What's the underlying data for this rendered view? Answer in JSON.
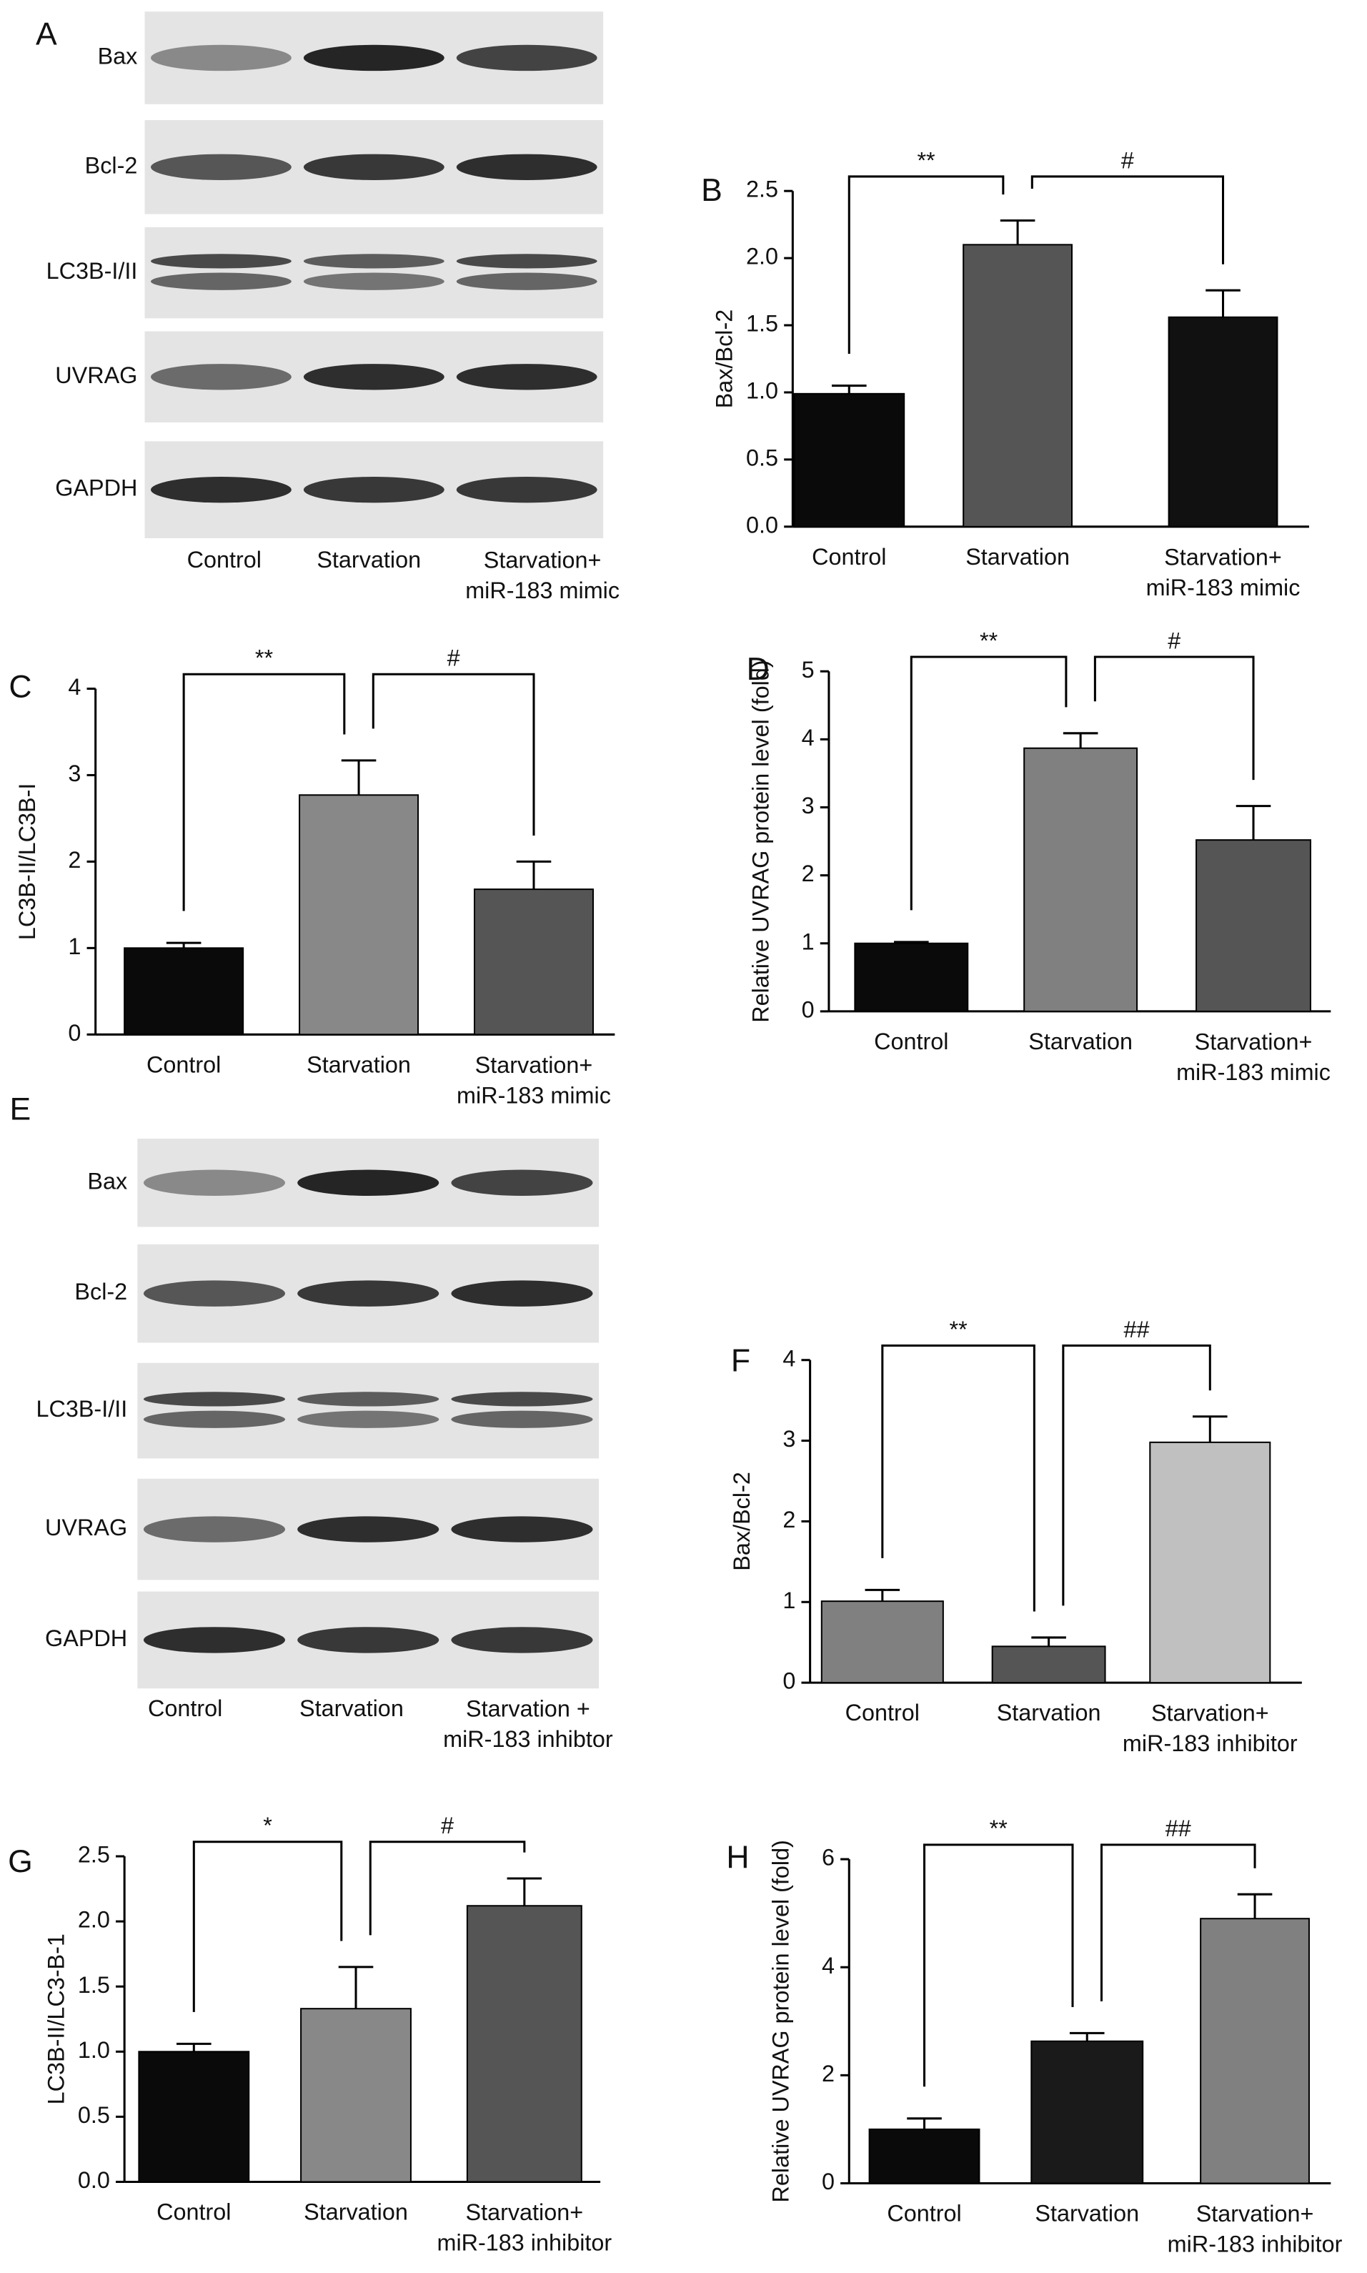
{
  "blots": [
    {
      "panel": "A",
      "rows": [
        "Bax",
        "Bcl-2",
        "LC3B-I/II",
        "UVRAG",
        "GAPDH"
      ],
      "lanes": [
        "Control",
        "Starvation",
        "Starvation+\nmiR-183 mimic"
      ]
    },
    {
      "panel": "E",
      "rows": [
        "Bax",
        "Bcl-2",
        "LC3B-I/II",
        "UVRAG",
        "GAPDH"
      ],
      "lanes": [
        "Control",
        "Starvation",
        "Starvation +\nmiR-183 inhibtor"
      ]
    }
  ],
  "chart_data": [
    {
      "type": "bar",
      "panel": "B",
      "y_label": "Bax/Bcl-2",
      "categories": [
        "Control",
        "Starvation",
        "Starvation+\nmiR-183 mimic"
      ],
      "values": [
        0.99,
        2.1,
        1.56
      ],
      "errors": [
        0.06,
        0.18,
        0.2
      ],
      "colors": [
        "#0a0a0a",
        "#555555",
        "#111111"
      ],
      "ylim": [
        0,
        2.5
      ],
      "yticks": [
        {
          "value": 0,
          "label": "0.0"
        },
        0.5,
        {
          "value": 1,
          "label": "1.0"
        },
        1.5,
        {
          "value": 2,
          "label": "2.0"
        },
        2.5
      ],
      "annotations": [
        "**",
        "#"
      ]
    },
    {
      "type": "bar",
      "panel": "C",
      "y_label": "LC3B-II/LC3B-I",
      "categories": [
        "Control",
        "Starvation",
        "Starvation+\nmiR-183 mimic"
      ],
      "values": [
        1.0,
        2.77,
        1.68
      ],
      "errors": [
        0.06,
        0.4,
        0.32
      ],
      "colors": [
        "#0a0a0a",
        "#888888",
        "#555555"
      ],
      "ylim": [
        0,
        4
      ],
      "yticks": [
        0,
        1,
        2,
        3,
        4
      ],
      "annotations": [
        "**",
        "#"
      ]
    },
    {
      "type": "bar",
      "panel": "D",
      "y_label": "Relative UVRAG protein level (fold)",
      "categories": [
        "Control",
        "Starvation",
        "Starvation+\nmiR-183 mimic"
      ],
      "values": [
        1.0,
        3.87,
        2.52
      ],
      "errors": [
        0.02,
        0.22,
        0.5
      ],
      "colors": [
        "#0a0a0a",
        "#808080",
        "#555555"
      ],
      "ylim": [
        0,
        5
      ],
      "yticks": [
        0,
        1,
        2,
        3,
        4,
        5
      ],
      "annotations": [
        "**",
        "#"
      ]
    },
    {
      "type": "bar",
      "panel": "F",
      "y_label": "Bax/Bcl-2",
      "categories": [
        "Control",
        "Starvation",
        "Starvation+\nmiR-183 inhibitor"
      ],
      "values": [
        1.01,
        0.45,
        2.98
      ],
      "errors": [
        0.14,
        0.11,
        0.32
      ],
      "colors": [
        "#808080",
        "#555555",
        "#c0c0c0"
      ],
      "ylim": [
        0,
        4
      ],
      "yticks": [
        0,
        1,
        2,
        3,
        4
      ],
      "annotations": [
        "**",
        "##"
      ]
    },
    {
      "type": "bar",
      "panel": "G",
      "y_label": "LC3B-II/LC3-B-1",
      "categories": [
        "Control",
        "Starvation",
        "Starvation+\nmiR-183 inhibitor"
      ],
      "values": [
        1.0,
        1.33,
        2.12
      ],
      "errors": [
        0.06,
        0.32,
        0.21
      ],
      "colors": [
        "#0a0a0a",
        "#888888",
        "#555555"
      ],
      "ylim": [
        0,
        2.5
      ],
      "yticks": [
        {
          "value": 0,
          "label": "0.0"
        },
        0.5,
        {
          "value": 1,
          "label": "1.0"
        },
        1.5,
        {
          "value": 2,
          "label": "2.0"
        },
        2.5
      ],
      "annotations": [
        "*",
        "#"
      ]
    },
    {
      "type": "bar",
      "panel": "H",
      "y_label": "Relative UVRAG protein level (fold)",
      "categories": [
        "Control",
        "Starvation",
        "Starvation+\nmiR-183 inhibitor"
      ],
      "values": [
        1.0,
        2.63,
        4.9
      ],
      "errors": [
        0.2,
        0.15,
        0.45
      ],
      "colors": [
        "#0a0a0a",
        "#1a1a1a",
        "#808080"
      ],
      "ylim": [
        0,
        6
      ],
      "yticks": [
        0,
        2,
        4,
        6
      ],
      "annotations": [
        "**",
        "##"
      ]
    }
  ]
}
